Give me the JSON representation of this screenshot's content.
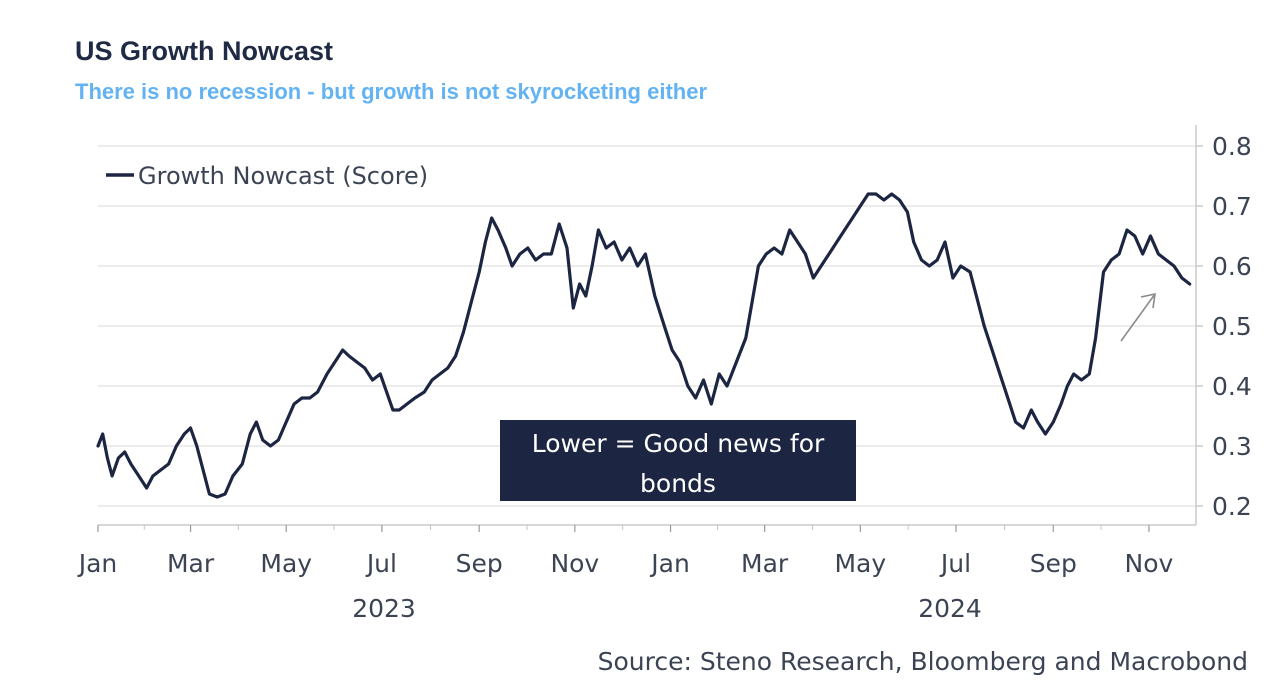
{
  "colors": {
    "series": "#1c2541",
    "subtitle": "#63b3f4",
    "title": "#1f2a44",
    "grid": "#d9d9d9",
    "axis_text": "#3c4454",
    "annotation_bg": "#1c2541",
    "annotation_text": "#ffffff",
    "arrow": "#8a8a8a"
  },
  "chart_data": {
    "type": "line",
    "title": "US Growth Nowcast",
    "subtitle": "There is no recession - but growth is not skyrocketing either",
    "source": "Source: Steno Research, Bloomberg and Macrobond",
    "ylim": [
      0.2,
      0.8
    ],
    "yticks": [
      "0.8",
      "0.7",
      "0.6",
      "0.5",
      "0.4",
      "0.3",
      "0.2"
    ],
    "y_axis_position": "right",
    "grid": true,
    "legend_position": "top-left",
    "x_range": [
      "2023-01-01",
      "2024-12-01"
    ],
    "xtick_labels": [
      "Jan",
      "Mar",
      "May",
      "Jul",
      "Sep",
      "Nov",
      "Jan",
      "Mar",
      "May",
      "Jul",
      "Sep",
      "Nov"
    ],
    "xtick_dates": [
      "2023-01-01",
      "2023-03-01",
      "2023-05-01",
      "2023-07-01",
      "2023-09-01",
      "2023-11-01",
      "2024-01-01",
      "2024-03-01",
      "2024-05-01",
      "2024-07-01",
      "2024-09-01",
      "2024-11-01"
    ],
    "year_labels": [
      "2023",
      "2024"
    ],
    "series": [
      {
        "name": "Growth Nowcast (Score)",
        "points": [
          [
            "2023-01-01",
            0.3
          ],
          [
            "2023-01-04",
            0.32
          ],
          [
            "2023-01-07",
            0.28
          ],
          [
            "2023-01-10",
            0.25
          ],
          [
            "2023-01-14",
            0.28
          ],
          [
            "2023-01-18",
            0.29
          ],
          [
            "2023-01-22",
            0.27
          ],
          [
            "2023-01-27",
            0.25
          ],
          [
            "2023-02-01",
            0.23
          ],
          [
            "2023-02-05",
            0.25
          ],
          [
            "2023-02-10",
            0.26
          ],
          [
            "2023-02-15",
            0.27
          ],
          [
            "2023-02-20",
            0.3
          ],
          [
            "2023-02-25",
            0.32
          ],
          [
            "2023-03-01",
            0.33
          ],
          [
            "2023-03-05",
            0.3
          ],
          [
            "2023-03-09",
            0.26
          ],
          [
            "2023-03-13",
            0.22
          ],
          [
            "2023-03-18",
            0.215
          ],
          [
            "2023-03-23",
            0.22
          ],
          [
            "2023-03-28",
            0.25
          ],
          [
            "2023-04-03",
            0.27
          ],
          [
            "2023-04-08",
            0.32
          ],
          [
            "2023-04-12",
            0.34
          ],
          [
            "2023-04-16",
            0.31
          ],
          [
            "2023-04-21",
            0.3
          ],
          [
            "2023-04-26",
            0.31
          ],
          [
            "2023-05-01",
            0.34
          ],
          [
            "2023-05-06",
            0.37
          ],
          [
            "2023-05-11",
            0.38
          ],
          [
            "2023-05-16",
            0.38
          ],
          [
            "2023-05-21",
            0.39
          ],
          [
            "2023-05-27",
            0.42
          ],
          [
            "2023-06-01",
            0.44
          ],
          [
            "2023-06-06",
            0.46
          ],
          [
            "2023-06-10",
            0.45
          ],
          [
            "2023-06-15",
            0.44
          ],
          [
            "2023-06-20",
            0.43
          ],
          [
            "2023-06-25",
            0.41
          ],
          [
            "2023-06-30",
            0.42
          ],
          [
            "2023-07-04",
            0.39
          ],
          [
            "2023-07-08",
            0.36
          ],
          [
            "2023-07-12",
            0.36
          ],
          [
            "2023-07-17",
            0.37
          ],
          [
            "2023-07-22",
            0.38
          ],
          [
            "2023-07-28",
            0.39
          ],
          [
            "2023-08-02",
            0.41
          ],
          [
            "2023-08-07",
            0.42
          ],
          [
            "2023-08-12",
            0.43
          ],
          [
            "2023-08-17",
            0.45
          ],
          [
            "2023-08-22",
            0.49
          ],
          [
            "2023-08-27",
            0.54
          ],
          [
            "2023-09-01",
            0.59
          ],
          [
            "2023-09-05",
            0.64
          ],
          [
            "2023-09-09",
            0.68
          ],
          [
            "2023-09-13",
            0.66
          ],
          [
            "2023-09-18",
            0.63
          ],
          [
            "2023-09-22",
            0.6
          ],
          [
            "2023-09-27",
            0.62
          ],
          [
            "2023-10-02",
            0.63
          ],
          [
            "2023-10-07",
            0.61
          ],
          [
            "2023-10-12",
            0.62
          ],
          [
            "2023-10-17",
            0.62
          ],
          [
            "2023-10-22",
            0.67
          ],
          [
            "2023-10-27",
            0.63
          ],
          [
            "2023-10-31",
            0.53
          ],
          [
            "2023-11-04",
            0.57
          ],
          [
            "2023-11-08",
            0.55
          ],
          [
            "2023-11-12",
            0.6
          ],
          [
            "2023-11-16",
            0.66
          ],
          [
            "2023-11-21",
            0.63
          ],
          [
            "2023-11-26",
            0.64
          ],
          [
            "2023-12-01",
            0.61
          ],
          [
            "2023-12-06",
            0.63
          ],
          [
            "2023-12-11",
            0.6
          ],
          [
            "2023-12-16",
            0.62
          ],
          [
            "2023-12-22",
            0.55
          ],
          [
            "2023-12-28",
            0.5
          ],
          [
            "2024-01-02",
            0.46
          ],
          [
            "2024-01-07",
            0.44
          ],
          [
            "2024-01-12",
            0.4
          ],
          [
            "2024-01-17",
            0.38
          ],
          [
            "2024-01-22",
            0.41
          ],
          [
            "2024-01-27",
            0.37
          ],
          [
            "2024-02-01",
            0.42
          ],
          [
            "2024-02-06",
            0.4
          ],
          [
            "2024-02-12",
            0.44
          ],
          [
            "2024-02-18",
            0.48
          ],
          [
            "2024-02-22",
            0.54
          ],
          [
            "2024-02-26",
            0.6
          ],
          [
            "2024-03-02",
            0.62
          ],
          [
            "2024-03-07",
            0.63
          ],
          [
            "2024-03-12",
            0.62
          ],
          [
            "2024-03-17",
            0.66
          ],
          [
            "2024-03-22",
            0.64
          ],
          [
            "2024-03-27",
            0.62
          ],
          [
            "2024-04-01",
            0.58
          ],
          [
            "2024-04-06",
            0.6
          ],
          [
            "2024-04-11",
            0.62
          ],
          [
            "2024-04-16",
            0.64
          ],
          [
            "2024-04-21",
            0.66
          ],
          [
            "2024-04-26",
            0.68
          ],
          [
            "2024-05-01",
            0.7
          ],
          [
            "2024-05-06",
            0.72
          ],
          [
            "2024-05-11",
            0.72
          ],
          [
            "2024-05-16",
            0.71
          ],
          [
            "2024-05-21",
            0.72
          ],
          [
            "2024-05-26",
            0.71
          ],
          [
            "2024-05-31",
            0.69
          ],
          [
            "2024-06-04",
            0.64
          ],
          [
            "2024-06-09",
            0.61
          ],
          [
            "2024-06-14",
            0.6
          ],
          [
            "2024-06-19",
            0.61
          ],
          [
            "2024-06-24",
            0.64
          ],
          [
            "2024-06-29",
            0.58
          ],
          [
            "2024-07-04",
            0.6
          ],
          [
            "2024-07-10",
            0.59
          ],
          [
            "2024-07-14",
            0.55
          ],
          [
            "2024-07-19",
            0.5
          ],
          [
            "2024-07-24",
            0.46
          ],
          [
            "2024-07-29",
            0.42
          ],
          [
            "2024-08-03",
            0.38
          ],
          [
            "2024-08-08",
            0.34
          ],
          [
            "2024-08-13",
            0.33
          ],
          [
            "2024-08-18",
            0.36
          ],
          [
            "2024-08-22",
            0.34
          ],
          [
            "2024-08-27",
            0.32
          ],
          [
            "2024-09-01",
            0.34
          ],
          [
            "2024-09-06",
            0.37
          ],
          [
            "2024-09-10",
            0.4
          ],
          [
            "2024-09-14",
            0.42
          ],
          [
            "2024-09-19",
            0.41
          ],
          [
            "2024-09-24",
            0.42
          ],
          [
            "2024-09-28",
            0.48
          ],
          [
            "2024-10-03",
            0.59
          ],
          [
            "2024-10-08",
            0.61
          ],
          [
            "2024-10-13",
            0.62
          ],
          [
            "2024-10-18",
            0.66
          ],
          [
            "2024-10-23",
            0.65
          ],
          [
            "2024-10-28",
            0.62
          ],
          [
            "2024-11-02",
            0.65
          ],
          [
            "2024-11-07",
            0.62
          ],
          [
            "2024-11-12",
            0.61
          ],
          [
            "2024-11-17",
            0.6
          ],
          [
            "2024-11-22",
            0.58
          ],
          [
            "2024-11-27",
            0.57
          ]
        ]
      }
    ],
    "annotations": [
      {
        "text_lines": [
          "Lower = Good news for",
          "bonds"
        ]
      }
    ]
  }
}
